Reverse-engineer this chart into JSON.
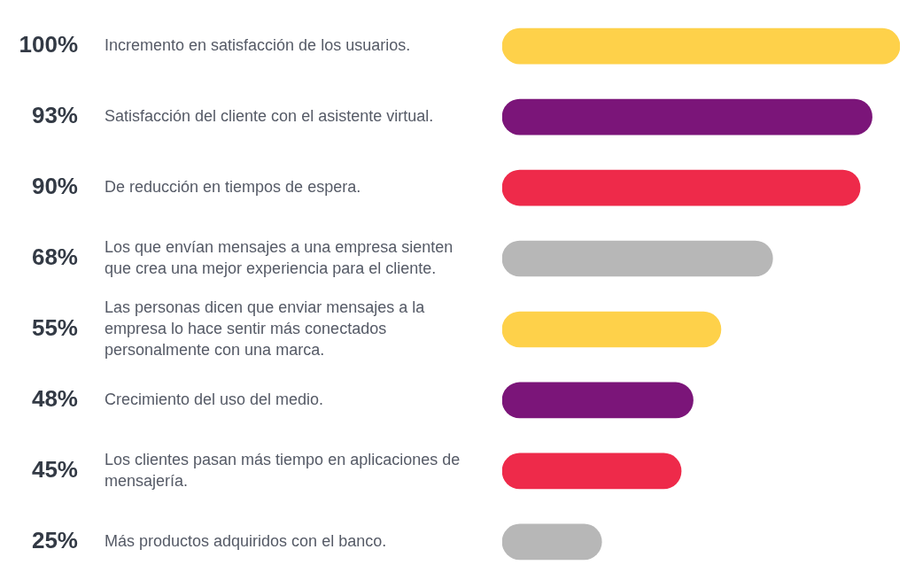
{
  "chart_data": {
    "type": "bar",
    "orientation": "horizontal",
    "categories": [
      "Incremento en satisfacción de los usuarios.",
      "Satisfacción del cliente con el asistente virtual.",
      "De reducción en tiempos de espera.",
      "Los que envían mensajes a una empresa sienten que crea una mejor experiencia para el cliente.",
      "Las personas dicen que enviar mensajes a la empresa lo hace sentir más conectados personalmente con una marca.",
      "Crecimiento del uso del medio.",
      "Los clientes pasan más tiempo en aplicaciones de mensajería.",
      "Más productos adquiridos con el banco."
    ],
    "values": [
      100,
      93,
      90,
      68,
      55,
      48,
      45,
      25
    ],
    "colors": [
      "#fed14a",
      "#7b1579",
      "#ee2a4a",
      "#b7b7b7",
      "#fed14a",
      "#7b1579",
      "#ee2a4a",
      "#b7b7b7"
    ],
    "value_labels": [
      "100%",
      "93%",
      "90%",
      "68%",
      "55%",
      "48%",
      "45%",
      "25%"
    ]
  }
}
